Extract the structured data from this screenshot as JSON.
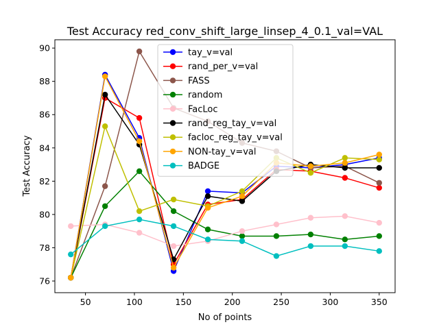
{
  "chart_data": {
    "type": "line",
    "title": "Test Accuracy red_conv_shift_large_linsep_4_0.1_val=VAL",
    "xlabel": "No of points",
    "ylabel": "Test Accuracy",
    "xlim": [
      18.75,
      366.25
    ],
    "ylim": [
      75.3,
      90.5
    ],
    "xticks": [
      50,
      100,
      150,
      200,
      250,
      300,
      350
    ],
    "yticks": [
      76,
      78,
      80,
      82,
      84,
      86,
      88,
      90
    ],
    "grid": false,
    "legend_position": "upper-center",
    "x": [
      35,
      70,
      105,
      140,
      175,
      210,
      245,
      280,
      315,
      350
    ],
    "series": [
      {
        "name": "tay_v=val",
        "color": "#0000ff",
        "values": [
          76.2,
          88.4,
          84.6,
          76.6,
          81.4,
          81.3,
          82.9,
          82.8,
          83.0,
          83.4
        ]
      },
      {
        "name": "rand_per_v=val",
        "color": "#ff0000",
        "values": [
          76.2,
          87.0,
          85.8,
          77.0,
          80.6,
          80.9,
          82.7,
          82.6,
          82.2,
          81.6
        ]
      },
      {
        "name": "FASS",
        "color": "#8c564b",
        "values": [
          76.2,
          81.7,
          89.8,
          86.4,
          85.6,
          84.3,
          83.8,
          82.8,
          82.9,
          81.9
        ]
      },
      {
        "name": "random",
        "color": "#008000",
        "values": [
          76.2,
          80.5,
          82.6,
          80.2,
          79.1,
          78.7,
          78.7,
          78.8,
          78.5,
          78.7
        ]
      },
      {
        "name": "FacLoc",
        "color": "#ffc0cb",
        "values": [
          79.3,
          79.4,
          78.9,
          78.1,
          78.4,
          79.0,
          79.4,
          79.8,
          79.9,
          79.5
        ]
      },
      {
        "name": "rand_reg_tay_v=val",
        "color": "#000000",
        "values": [
          76.2,
          87.2,
          84.2,
          77.3,
          81.1,
          80.8,
          82.6,
          83.0,
          82.8,
          82.8
        ]
      },
      {
        "name": "facloc_reg_tay_v=val",
        "color": "#bfbf00",
        "values": [
          76.2,
          85.3,
          80.2,
          80.9,
          80.5,
          81.4,
          83.4,
          82.5,
          83.4,
          83.3
        ]
      },
      {
        "name": "NON-tay_v=val",
        "color": "#ffa500",
        "values": [
          76.2,
          88.3,
          84.4,
          76.8,
          80.4,
          81.1,
          83.1,
          82.9,
          83.1,
          83.6
        ]
      },
      {
        "name": "BADGE",
        "color": "#00bfbf",
        "values": [
          77.6,
          79.3,
          79.7,
          79.3,
          78.5,
          78.4,
          77.5,
          78.1,
          78.1,
          77.8
        ]
      }
    ]
  }
}
